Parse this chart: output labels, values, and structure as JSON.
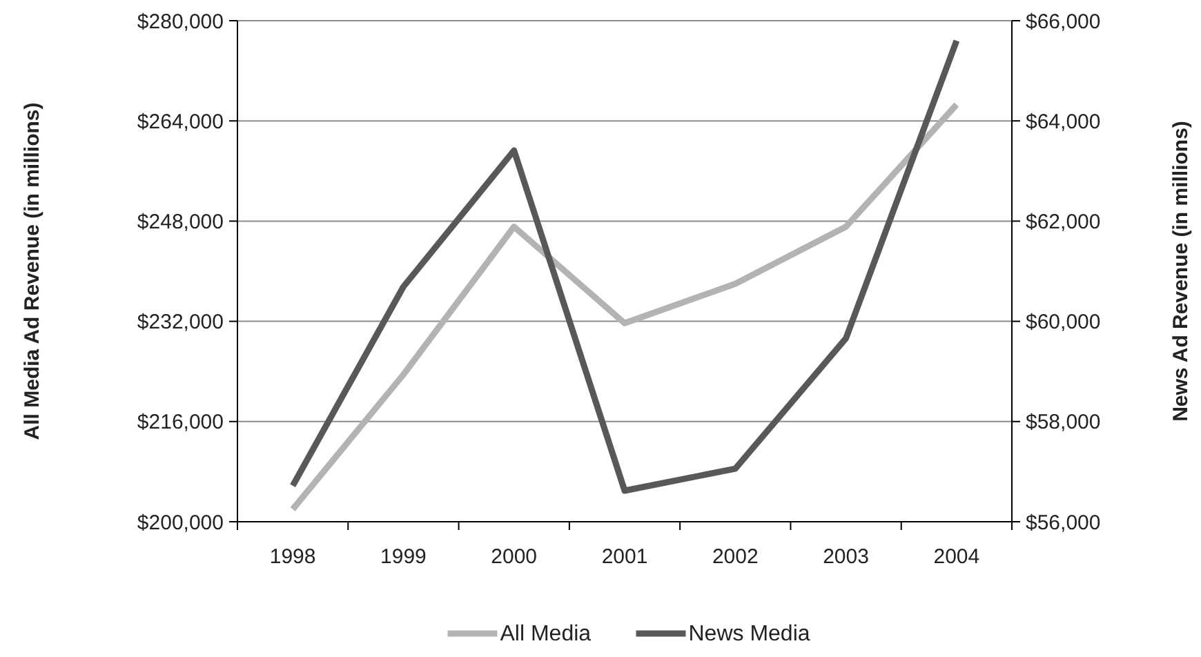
{
  "chart_data": {
    "type": "line",
    "categories": [
      "1998",
      "1999",
      "2000",
      "2001",
      "2002",
      "2003",
      "2004"
    ],
    "series": [
      {
        "name": "All Media",
        "color": "#b3b3b5",
        "values": [
          202000,
          223500,
          247100,
          231700,
          238000,
          247100,
          266600
        ]
      },
      {
        "name": "News Media",
        "color": "#58585a",
        "axis": "y2",
        "values": [
          56720,
          60690,
          63410,
          56620,
          57060,
          59660,
          65600
        ]
      }
    ],
    "ylabel": "All Media Ad Revenue (in millions)",
    "y2label": "News Ad Revenue (in millions)",
    "ylim": [
      200000,
      280000
    ],
    "yticks": [
      {
        "value": 200000,
        "label": "$200,000"
      },
      {
        "value": 216000,
        "label": "$216,000"
      },
      {
        "value": 232000,
        "label": "$232,000"
      },
      {
        "value": 248000,
        "label": "$248,000"
      },
      {
        "value": 264000,
        "label": "$264,000"
      },
      {
        "value": 280000,
        "label": "$280,000"
      }
    ],
    "y2lim": [
      56000,
      66000
    ],
    "y2ticks": [
      {
        "value": 56000,
        "label": "$56,000"
      },
      {
        "value": 58000,
        "label": "$58,000"
      },
      {
        "value": 60000,
        "label": "$60,000"
      },
      {
        "value": 62000,
        "label": "$62,000"
      },
      {
        "value": 64000,
        "label": "$64,000"
      },
      {
        "value": 66000,
        "label": "$66,000"
      }
    ],
    "grid": "y",
    "legend": "bottom",
    "line_style": "solid"
  }
}
